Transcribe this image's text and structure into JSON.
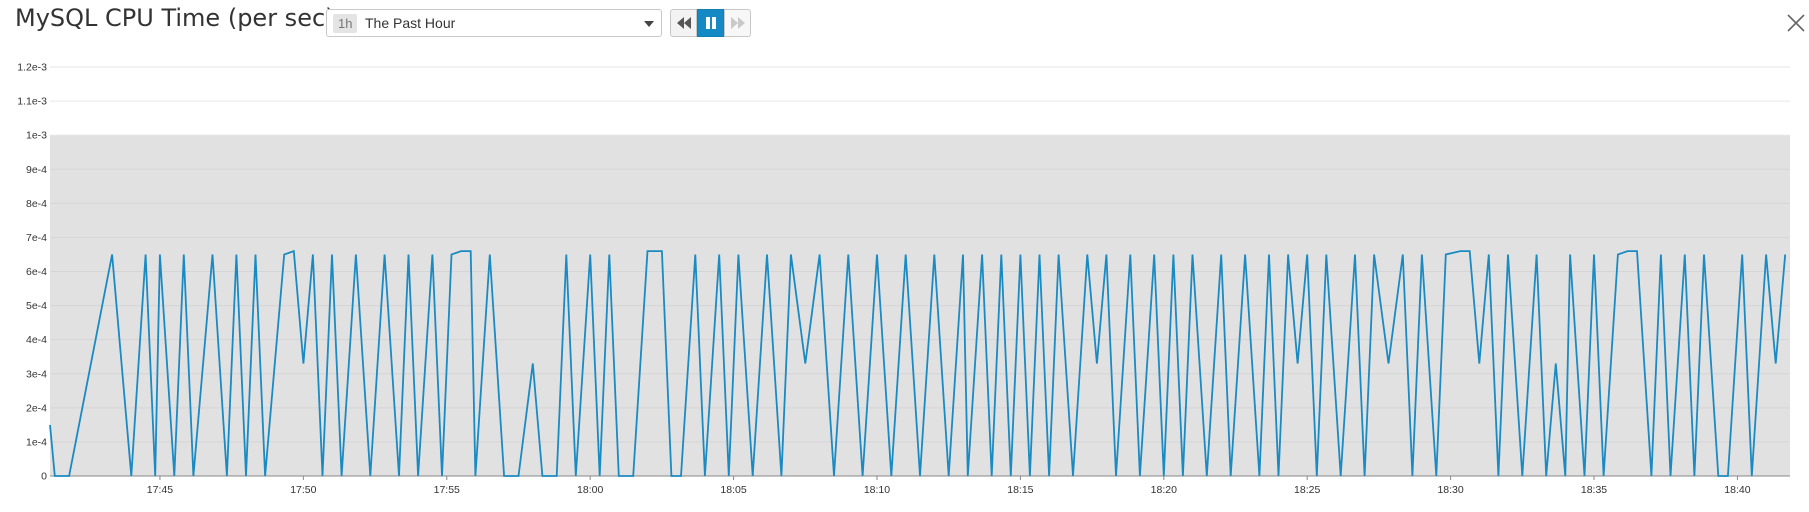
{
  "header": {
    "title": "MySQL CPU Time (per sec)",
    "timeframe_badge": "1h",
    "timeframe_label": "The Past Hour"
  },
  "icons": {
    "rewind": "rewind-icon",
    "pause": "pause-icon",
    "forward": "fast-forward-icon",
    "close": "close-icon",
    "caret": "chevron-down-icon"
  },
  "colors": {
    "line": "#1a8ac2",
    "band": "#e1e1e1",
    "grid": "#e6e6e6",
    "accent": "#1589c3"
  },
  "chart_data": {
    "type": "line",
    "title": "MySQL CPU Time (per sec)",
    "xlabel": "",
    "ylabel": "",
    "y_ticks": [
      "0",
      "1e-4",
      "2e-4",
      "3e-4",
      "4e-4",
      "5e-4",
      "6e-4",
      "7e-4",
      "8e-4",
      "9e-4",
      "1e-3",
      "1.1e-3",
      "1.2e-3"
    ],
    "y_tick_values": [
      0,
      0.0001,
      0.0002,
      0.0003,
      0.0004,
      0.0005,
      0.0006,
      0.0007,
      0.0008,
      0.0009,
      0.001,
      0.0011,
      0.0012
    ],
    "ylim": [
      0,
      0.00125
    ],
    "x_ticks": [
      "17:45",
      "17:50",
      "17:55",
      "18:00",
      "18:05",
      "18:10",
      "18:15",
      "18:20",
      "18:25",
      "18:30",
      "18:35",
      "18:40"
    ],
    "xlim": [
      "17:41:10",
      "18:41:50"
    ],
    "threshold_band": [
      0,
      0.001
    ],
    "grid": true,
    "series": [
      {
        "x": [
          "17:41:10",
          "17:41:20",
          "17:41:50",
          "17:43:20",
          "17:44:00",
          "17:44:30",
          "17:44:50",
          "17:45:00",
          "17:45:30",
          "17:45:50",
          "17:46:10",
          "17:46:50",
          "17:47:20",
          "17:47:40",
          "17:48:00",
          "17:48:20",
          "17:48:40",
          "17:49:20",
          "17:49:40",
          "17:50:00",
          "17:50:20",
          "17:50:40",
          "17:51:00",
          "17:51:20",
          "17:51:50",
          "17:52:20",
          "17:52:50",
          "17:53:20",
          "17:53:40",
          "17:54:00",
          "17:54:30",
          "17:54:50",
          "17:55:10",
          "17:55:30",
          "17:55:50",
          "17:56:00",
          "17:56:30",
          "17:57:00",
          "17:57:30",
          "17:58:00",
          "17:58:20",
          "17:58:50",
          "17:59:10",
          "17:59:30",
          "18:00:00",
          "18:00:20",
          "18:00:40",
          "18:01:00",
          "18:01:30",
          "18:02:00",
          "18:02:30",
          "18:02:50",
          "18:03:10",
          "18:03:40",
          "18:04:00",
          "18:04:30",
          "18:04:50",
          "18:05:10",
          "18:05:40",
          "18:06:10",
          "18:06:40",
          "18:07:00",
          "18:07:30",
          "18:08:00",
          "18:08:30",
          "18:09:00",
          "18:09:30",
          "18:10:00",
          "18:10:30",
          "18:11:00",
          "18:11:30",
          "18:12:00",
          "18:12:30",
          "18:13:00",
          "18:13:10",
          "18:13:40",
          "18:14:00",
          "18:14:20",
          "18:14:40",
          "18:15:00",
          "18:15:20",
          "18:15:40",
          "18:16:00",
          "18:16:20",
          "18:16:50",
          "18:17:20",
          "18:17:40",
          "18:18:00",
          "18:18:20",
          "18:18:50",
          "18:19:10",
          "18:19:40",
          "18:20:00",
          "18:20:20",
          "18:20:40",
          "18:21:00",
          "18:21:30",
          "18:22:00",
          "18:22:20",
          "18:22:50",
          "18:23:20",
          "18:23:40",
          "18:24:00",
          "18:24:20",
          "18:24:40",
          "18:25:00",
          "18:25:20",
          "18:25:40",
          "18:26:10",
          "18:26:40",
          "18:27:00",
          "18:27:20",
          "18:27:50",
          "18:28:20",
          "18:28:40",
          "18:29:00",
          "18:29:30",
          "18:29:50",
          "18:30:20",
          "18:30:40",
          "18:31:00",
          "18:31:20",
          "18:31:40",
          "18:32:00",
          "18:32:30",
          "18:33:00",
          "18:33:20",
          "18:33:40",
          "18:34:00",
          "18:34:10",
          "18:34:40",
          "18:35:00",
          "18:35:20",
          "18:35:50",
          "18:36:10",
          "18:36:30",
          "18:37:00",
          "18:37:20",
          "18:37:40",
          "18:38:10",
          "18:38:30",
          "18:38:50",
          "18:39:20",
          "18:39:40",
          "18:40:10",
          "18:40:30",
          "18:41:00",
          "18:41:20",
          "18:41:40"
        ],
        "y": [
          0.00015,
          0,
          0,
          0.00065,
          0,
          0.00065,
          0,
          0.00065,
          0,
          0.00065,
          0,
          0.00065,
          0,
          0.00065,
          0,
          0.00065,
          0,
          0.00065,
          0.00066,
          0.00033,
          0.00065,
          0,
          0.00065,
          0,
          0.00065,
          0,
          0.00065,
          0,
          0.00065,
          0,
          0.00065,
          0,
          0.00065,
          0.00066,
          0.00066,
          0,
          0.00065,
          0,
          0,
          0.00033,
          0,
          0,
          0.00065,
          0,
          0.00065,
          0,
          0.00065,
          0,
          0,
          0.00066,
          0.00066,
          0,
          0,
          0.00065,
          0,
          0.00065,
          0,
          0.00065,
          0,
          0.00065,
          0,
          0.00065,
          0.00033,
          0.00065,
          0,
          0.00065,
          0,
          0.00065,
          0,
          0.00065,
          0,
          0.00065,
          0,
          0.00065,
          0,
          0.00065,
          0,
          0.00065,
          0,
          0.00065,
          0,
          0.00065,
          0,
          0.00065,
          0,
          0.00065,
          0.00033,
          0.00065,
          0,
          0.00065,
          0,
          0.00065,
          0,
          0.00065,
          0,
          0.00065,
          0,
          0.00065,
          0,
          0.00065,
          0,
          0.00065,
          0,
          0.00065,
          0.00033,
          0.00065,
          0,
          0.00065,
          0,
          0.00065,
          0,
          0.00065,
          0.00033,
          0.00065,
          0,
          0.00065,
          0,
          0.00065,
          0.00066,
          0.00066,
          0.00033,
          0.00065,
          0,
          0.00065,
          0,
          0.00065,
          0,
          0.00033,
          0,
          0.00065,
          0,
          0.00065,
          0,
          0.00065,
          0.00066,
          0.00066,
          0,
          0.00065,
          0,
          0.00065,
          0,
          0.00065,
          0,
          0,
          0.00065,
          0,
          0.00065,
          0.00033,
          0.00065
        ]
      }
    ]
  }
}
